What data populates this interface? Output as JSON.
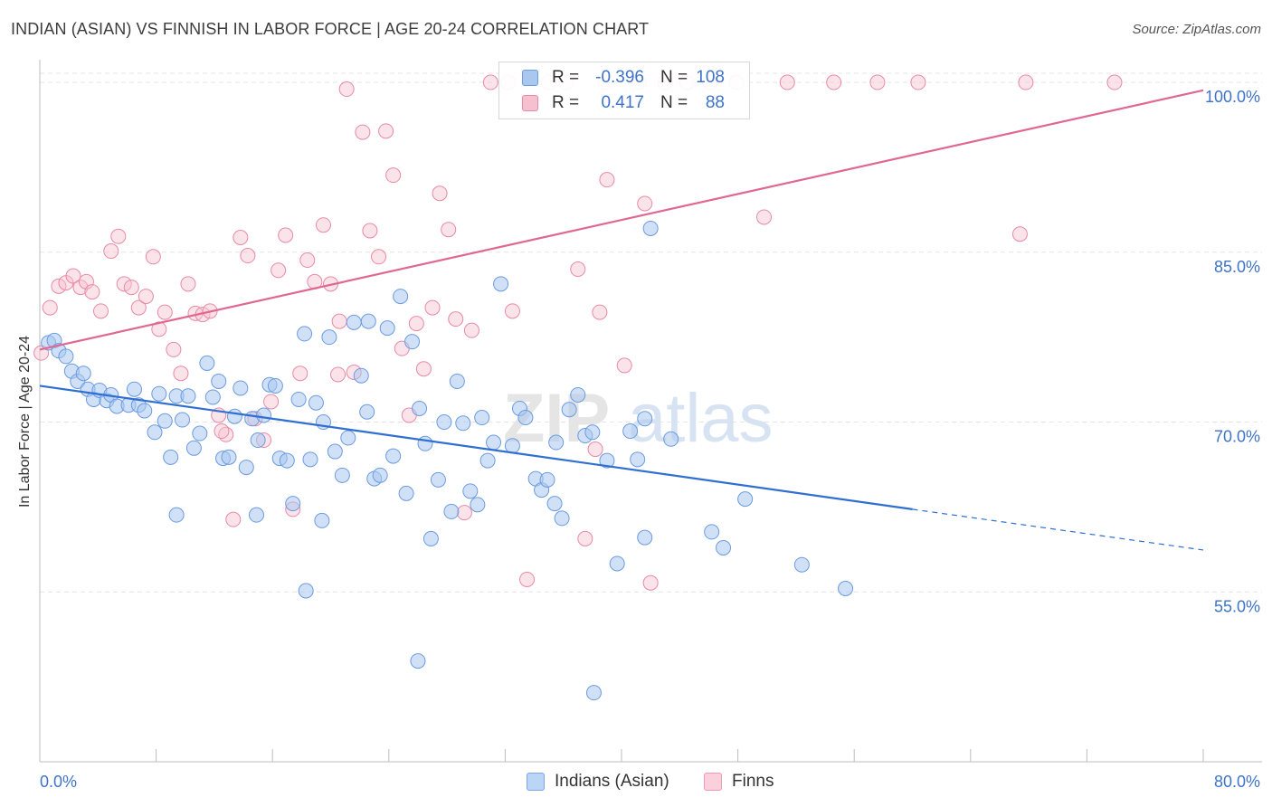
{
  "header": {
    "title": "INDIAN (ASIAN) VS FINNISH IN LABOR FORCE | AGE 20-24 CORRELATION CHART",
    "source": "Source: ZipAtlas.com"
  },
  "watermark": {
    "text_zip": "ZIP",
    "text_atlas": "atlas"
  },
  "legend_top": {
    "rows": [
      {
        "r_label": "R =",
        "r_value": "-0.396",
        "n_label": "N =",
        "n_value": "108"
      },
      {
        "r_label": "R =",
        "r_value": "0.417",
        "n_label": "N =",
        "n_value": "88"
      }
    ]
  },
  "legend_bottom": {
    "items": [
      "Indians (Asian)",
      "Finns"
    ]
  },
  "colors": {
    "blue_fill": "#a9c8f0",
    "blue_stroke": "#6b9be0",
    "blue_line": "#2f6fd1",
    "pink_fill": "#f6c0d0",
    "pink_stroke": "#e88aa6",
    "pink_line": "#e06792",
    "tick_label": "#3f73c9",
    "grid": "#e4e4e4"
  },
  "chart_data": {
    "type": "scatter",
    "title": "INDIAN (ASIAN) VS FINNISH IN LABOR FORCE | AGE 20-24 CORRELATION CHART",
    "xlabel": "",
    "ylabel": "In Labor Force | Age 20-24",
    "xlim": [
      0,
      80
    ],
    "ylim": [
      40,
      102
    ],
    "x_tick_labels": [
      "0.0%",
      "80.0%"
    ],
    "y_ticks": [
      55,
      70,
      85,
      100
    ],
    "y_tick_labels": [
      "55.0%",
      "70.0%",
      "85.0%",
      "100.0%"
    ],
    "grid": true,
    "legend_position": "top-center",
    "series": [
      {
        "name": "Indians (Asian)",
        "r": -0.396,
        "n": 108,
        "trend": {
          "x_start": 0,
          "y_start": 73.2,
          "x_solid_end": 60,
          "y_solid_end": 62.3,
          "x_end": 80,
          "y_end": 58.7
        },
        "points": [
          [
            0.6,
            77.0
          ],
          [
            1.0,
            77.2
          ],
          [
            1.3,
            76.3
          ],
          [
            1.8,
            75.8
          ],
          [
            2.2,
            74.5
          ],
          [
            2.6,
            73.6
          ],
          [
            3.0,
            74.3
          ],
          [
            3.3,
            72.9
          ],
          [
            3.7,
            72.0
          ],
          [
            4.1,
            72.8
          ],
          [
            4.6,
            71.9
          ],
          [
            4.9,
            72.4
          ],
          [
            5.3,
            71.4
          ],
          [
            6.1,
            71.5
          ],
          [
            6.5,
            72.9
          ],
          [
            6.8,
            71.5
          ],
          [
            7.2,
            71.0
          ],
          [
            7.9,
            69.1
          ],
          [
            8.2,
            72.5
          ],
          [
            8.6,
            70.1
          ],
          [
            9.0,
            66.9
          ],
          [
            9.4,
            72.3
          ],
          [
            9.8,
            70.2
          ],
          [
            10.2,
            72.3
          ],
          [
            10.6,
            67.7
          ],
          [
            11.0,
            69.0
          ],
          [
            11.5,
            75.2
          ],
          [
            11.9,
            72.2
          ],
          [
            12.3,
            73.6
          ],
          [
            12.6,
            66.8
          ],
          [
            13.0,
            66.9
          ],
          [
            13.4,
            70.5
          ],
          [
            13.8,
            73.0
          ],
          [
            14.2,
            66.0
          ],
          [
            14.6,
            70.3
          ],
          [
            15.0,
            68.4
          ],
          [
            15.4,
            70.6
          ],
          [
            15.8,
            73.3
          ],
          [
            16.2,
            73.2
          ],
          [
            16.5,
            66.8
          ],
          [
            17.0,
            66.6
          ],
          [
            17.4,
            62.8
          ],
          [
            17.8,
            72.0
          ],
          [
            18.2,
            77.8
          ],
          [
            18.6,
            66.7
          ],
          [
            19.0,
            71.7
          ],
          [
            19.5,
            70.0
          ],
          [
            19.9,
            77.5
          ],
          [
            20.3,
            67.4
          ],
          [
            20.8,
            65.3
          ],
          [
            21.2,
            68.6
          ],
          [
            21.6,
            78.8
          ],
          [
            22.1,
            74.1
          ],
          [
            22.6,
            78.9
          ],
          [
            23.0,
            65.0
          ],
          [
            23.4,
            65.3
          ],
          [
            23.9,
            78.3
          ],
          [
            24.3,
            67.0
          ],
          [
            24.8,
            81.1
          ],
          [
            25.2,
            63.7
          ],
          [
            25.6,
            77.1
          ],
          [
            26.1,
            71.2
          ],
          [
            26.5,
            68.1
          ],
          [
            26.9,
            59.7
          ],
          [
            27.4,
            64.9
          ],
          [
            27.8,
            70.0
          ],
          [
            28.3,
            62.1
          ],
          [
            28.7,
            73.6
          ],
          [
            29.1,
            69.9
          ],
          [
            29.6,
            63.9
          ],
          [
            30.4,
            70.4
          ],
          [
            30.8,
            66.6
          ],
          [
            31.2,
            68.2
          ],
          [
            31.7,
            82.2
          ],
          [
            32.5,
            67.9
          ],
          [
            33.0,
            71.2
          ],
          [
            33.4,
            70.4
          ],
          [
            34.1,
            65.0
          ],
          [
            34.5,
            64.0
          ],
          [
            34.9,
            64.9
          ],
          [
            35.5,
            68.2
          ],
          [
            35.9,
            61.5
          ],
          [
            36.4,
            71.1
          ],
          [
            37.0,
            72.4
          ],
          [
            37.5,
            68.8
          ],
          [
            38.0,
            69.1
          ],
          [
            39.0,
            66.6
          ],
          [
            39.7,
            57.5
          ],
          [
            40.6,
            69.2
          ],
          [
            41.1,
            66.7
          ],
          [
            41.6,
            70.3
          ],
          [
            42.0,
            87.1
          ],
          [
            43.4,
            68.5
          ],
          [
            46.2,
            60.3
          ],
          [
            47.0,
            58.9
          ],
          [
            48.5,
            63.2
          ],
          [
            52.4,
            57.4
          ],
          [
            55.4,
            55.3
          ],
          [
            19.4,
            61.3
          ],
          [
            14.9,
            61.8
          ],
          [
            18.3,
            55.1
          ],
          [
            26.0,
            48.9
          ],
          [
            38.1,
            46.1
          ],
          [
            9.4,
            61.8
          ],
          [
            22.5,
            70.9
          ],
          [
            30.1,
            62.7
          ],
          [
            41.6,
            59.8
          ],
          [
            35.4,
            62.8
          ]
        ]
      },
      {
        "name": "Finns",
        "r": 0.417,
        "n": 88,
        "trend": {
          "x_start": 0,
          "y_start": 76.4,
          "x_end": 80,
          "y_end": 99.3
        },
        "points": [
          [
            0.1,
            76.1
          ],
          [
            0.7,
            80.1
          ],
          [
            1.3,
            82.0
          ],
          [
            1.8,
            82.3
          ],
          [
            2.3,
            82.9
          ],
          [
            2.8,
            81.9
          ],
          [
            3.2,
            82.4
          ],
          [
            3.6,
            81.5
          ],
          [
            4.2,
            79.8
          ],
          [
            4.9,
            85.1
          ],
          [
            5.4,
            86.4
          ],
          [
            5.8,
            82.2
          ],
          [
            6.3,
            81.9
          ],
          [
            6.8,
            80.1
          ],
          [
            7.3,
            81.1
          ],
          [
            7.8,
            84.6
          ],
          [
            8.2,
            78.2
          ],
          [
            8.6,
            79.7
          ],
          [
            9.2,
            76.4
          ],
          [
            9.7,
            74.3
          ],
          [
            10.2,
            82.2
          ],
          [
            10.7,
            79.6
          ],
          [
            11.2,
            79.5
          ],
          [
            11.7,
            79.8
          ],
          [
            12.3,
            70.6
          ],
          [
            12.8,
            68.9
          ],
          [
            13.3,
            61.4
          ],
          [
            13.8,
            86.3
          ],
          [
            14.3,
            84.7
          ],
          [
            14.8,
            70.3
          ],
          [
            15.4,
            68.4
          ],
          [
            15.9,
            71.8
          ],
          [
            16.4,
            83.4
          ],
          [
            16.9,
            86.5
          ],
          [
            17.4,
            62.3
          ],
          [
            17.9,
            74.3
          ],
          [
            18.4,
            84.3
          ],
          [
            18.9,
            82.4
          ],
          [
            19.5,
            87.4
          ],
          [
            20.0,
            82.2
          ],
          [
            20.6,
            78.9
          ],
          [
            21.1,
            99.4
          ],
          [
            21.6,
            74.4
          ],
          [
            22.2,
            95.6
          ],
          [
            22.7,
            86.9
          ],
          [
            23.3,
            84.6
          ],
          [
            23.8,
            95.7
          ],
          [
            24.3,
            91.8
          ],
          [
            24.9,
            76.5
          ],
          [
            25.4,
            70.6
          ],
          [
            25.9,
            78.7
          ],
          [
            26.4,
            74.7
          ],
          [
            27.0,
            80.1
          ],
          [
            27.5,
            90.2
          ],
          [
            28.1,
            87.0
          ],
          [
            28.6,
            79.1
          ],
          [
            29.2,
            62.0
          ],
          [
            29.7,
            78.1
          ],
          [
            31.0,
            100.0
          ],
          [
            32.2,
            100.0
          ],
          [
            32.5,
            79.8
          ],
          [
            33.5,
            56.1
          ],
          [
            35.0,
            100.0
          ],
          [
            36.2,
            100.0
          ],
          [
            37.0,
            83.5
          ],
          [
            37.5,
            59.7
          ],
          [
            38.2,
            67.6
          ],
          [
            38.5,
            79.7
          ],
          [
            39.0,
            91.4
          ],
          [
            40.2,
            75.0
          ],
          [
            41.2,
            100.0
          ],
          [
            41.6,
            89.3
          ],
          [
            42.0,
            55.8
          ],
          [
            43.0,
            100.0
          ],
          [
            44.5,
            100.0
          ],
          [
            46.1,
            100.0
          ],
          [
            47.9,
            100.0
          ],
          [
            49.8,
            88.1
          ],
          [
            51.4,
            100.0
          ],
          [
            54.6,
            100.0
          ],
          [
            57.6,
            100.0
          ],
          [
            60.4,
            100.0
          ],
          [
            67.8,
            100.0
          ],
          [
            67.4,
            86.6
          ],
          [
            73.9,
            100.0
          ],
          [
            20.5,
            74.2
          ],
          [
            12.5,
            69.2
          ],
          [
            38.9,
            100.0
          ]
        ]
      }
    ]
  }
}
